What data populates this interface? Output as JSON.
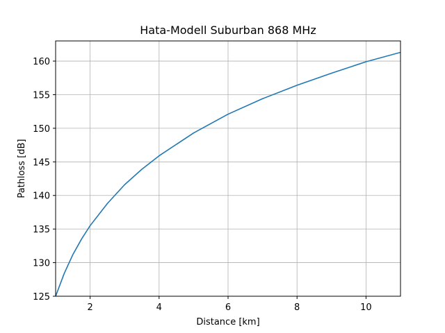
{
  "chart_data": {
    "type": "line",
    "title": "Hata-Modell Suburban 868 MHz",
    "xlabel": "Distance [km]",
    "ylabel": "Pathloss [dB]",
    "xlim": [
      1,
      11
    ],
    "ylim": [
      125,
      163
    ],
    "x_ticks": [
      2,
      4,
      6,
      8,
      10
    ],
    "y_ticks": [
      125,
      130,
      135,
      140,
      145,
      150,
      155,
      160
    ],
    "grid": true,
    "color": "#1f77b4",
    "series": [
      {
        "x": [
          1.0,
          1.25,
          1.5,
          1.75,
          2.0,
          2.5,
          3.0,
          3.5,
          4.0,
          5.0,
          6.0,
          7.0,
          8.0,
          9.0,
          10.0,
          11.0
        ],
        "values": [
          125.0,
          128.4,
          131.2,
          133.5,
          135.5,
          138.8,
          141.6,
          143.9,
          145.9,
          149.3,
          152.1,
          154.4,
          156.4,
          158.2,
          159.9,
          161.3
        ]
      }
    ]
  }
}
